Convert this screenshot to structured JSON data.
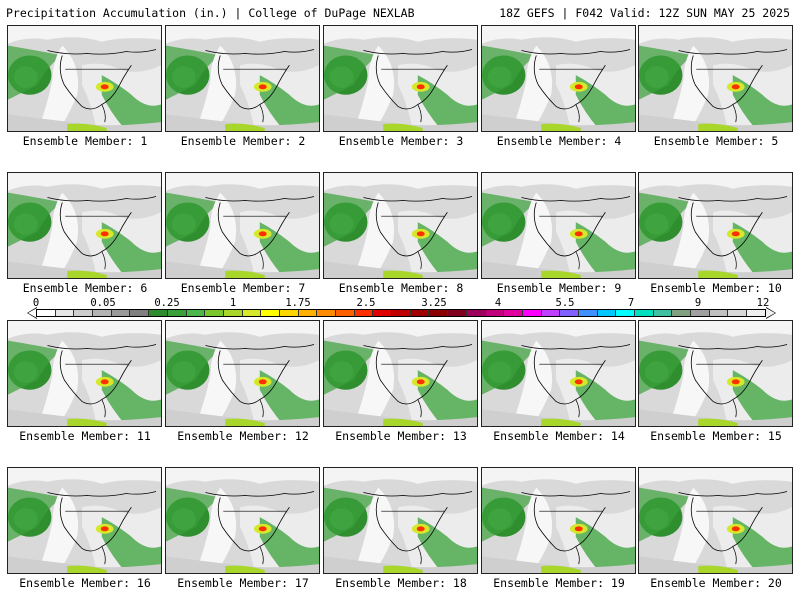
{
  "header": {
    "left_title": "Precipitation Accumulation (in.) | College of DuPage NEXLAB",
    "right_title": "18Z GEFS | F042 Valid: 12Z SUN MAY 25 2025"
  },
  "colorbar": {
    "tick_labels": [
      "0",
      "0.05",
      "0.25",
      "1",
      "1.75",
      "2.5",
      "3.25",
      "4",
      "5.5",
      "7",
      "9",
      "12"
    ],
    "colors": [
      "#ffffff",
      "#e6e6e6",
      "#cccccc",
      "#b3b3b3",
      "#9a9a9a",
      "#808080",
      "#2e8b2e",
      "#3aa13a",
      "#4cb84c",
      "#79c62f",
      "#a8d62a",
      "#d6e82a",
      "#ffff00",
      "#ffd700",
      "#ffb000",
      "#ff8c00",
      "#ff6000",
      "#ff3000",
      "#e00000",
      "#c00000",
      "#a00000",
      "#8b0000",
      "#800020",
      "#9e005d",
      "#c0007a",
      "#e000a0",
      "#ff00ff",
      "#c040ff",
      "#8060ff",
      "#4090ff",
      "#00c8ff",
      "#00ffff",
      "#00e0c0",
      "#40c0a0",
      "#80a080",
      "#a0a0a0",
      "#c0c0c0",
      "#d8d8d8",
      "#efefef"
    ]
  },
  "members": [
    {
      "label": "Ensemble Member: 1"
    },
    {
      "label": "Ensemble Member: 2"
    },
    {
      "label": "Ensemble Member: 3"
    },
    {
      "label": "Ensemble Member: 4"
    },
    {
      "label": "Ensemble Member: 5"
    },
    {
      "label": "Ensemble Member: 6"
    },
    {
      "label": "Ensemble Member: 7"
    },
    {
      "label": "Ensemble Member: 8"
    },
    {
      "label": "Ensemble Member: 9"
    },
    {
      "label": "Ensemble Member: 10"
    },
    {
      "label": "Ensemble Member: 11"
    },
    {
      "label": "Ensemble Member: 12"
    },
    {
      "label": "Ensemble Member: 13"
    },
    {
      "label": "Ensemble Member: 14"
    },
    {
      "label": "Ensemble Member: 15"
    },
    {
      "label": "Ensemble Member: 16"
    },
    {
      "label": "Ensemble Member: 17"
    },
    {
      "label": "Ensemble Member: 18"
    },
    {
      "label": "Ensemble Member: 19"
    },
    {
      "label": "Ensemble Member: 20"
    }
  ]
}
